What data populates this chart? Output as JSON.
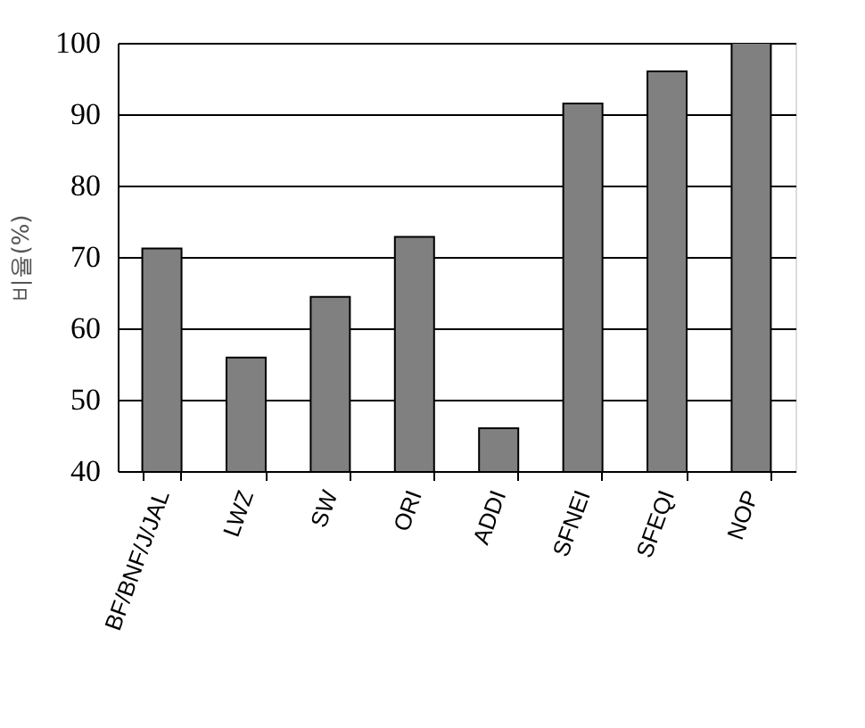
{
  "chart_data": {
    "type": "bar",
    "ylabel": "비율(%)",
    "categories": [
      "BF/BNF/J/JAL",
      "LWZ",
      "SW",
      "ORI",
      "ADDI",
      "SFNEI",
      "SFEQI",
      "NOP"
    ],
    "values": [
      71.2,
      55.9,
      64.4,
      72.8,
      46.0,
      91.5,
      96.0,
      100
    ],
    "color": "#808080",
    "ylim": [
      40,
      100
    ],
    "yticks": [
      40,
      50,
      60,
      70,
      80,
      90,
      100
    ],
    "grid": "y"
  }
}
